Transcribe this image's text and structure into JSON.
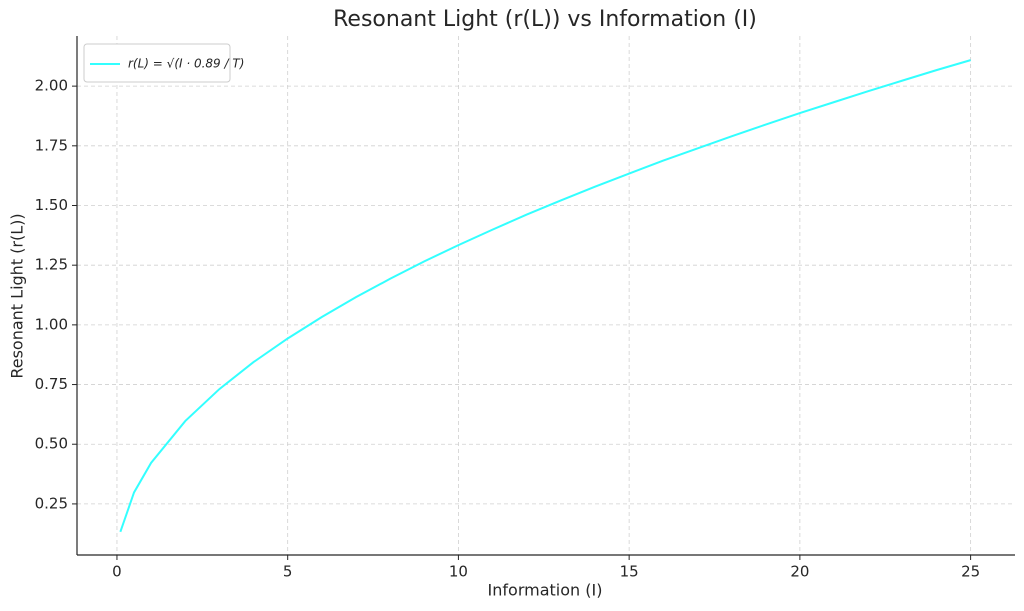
{
  "chart_data": {
    "type": "line",
    "title": "Resonant Light (r(L)) vs Information (I)",
    "x_label": "Information (I)",
    "y_label": "Resonant Light (r(L))",
    "x": [
      0.1,
      0.5,
      1,
      2,
      3,
      4,
      5,
      6,
      7,
      8,
      9,
      10,
      11,
      12,
      13,
      14,
      15,
      16,
      17,
      18,
      19,
      20,
      21,
      22,
      23,
      24,
      25
    ],
    "series": [
      {
        "name": "r(L) = √(I · 0.89 / T)",
        "color": "#33ffff",
        "values": [
          0.133,
          0.298,
          0.422,
          0.597,
          0.731,
          0.844,
          0.943,
          1.033,
          1.116,
          1.193,
          1.266,
          1.334,
          1.399,
          1.462,
          1.521,
          1.579,
          1.634,
          1.688,
          1.739,
          1.79,
          1.839,
          1.887,
          1.933,
          1.979,
          2.023,
          2.067,
          2.109
        ]
      }
    ],
    "xlim": [
      -1.17,
      26.3
    ],
    "ylim": [
      0.036,
      2.21
    ],
    "xticks": [
      0,
      5,
      10,
      15,
      20,
      25
    ],
    "yticks": [
      0.25,
      {
        "value": 0.5,
        "label": "0.50"
      },
      0.75,
      {
        "value": 1,
        "label": "1.00"
      },
      1.25,
      {
        "value": 1.5,
        "label": "1.50"
      },
      1.75,
      {
        "value": 2,
        "label": "2.00"
      }
    ],
    "grid": true,
    "legend": "upper left"
  }
}
